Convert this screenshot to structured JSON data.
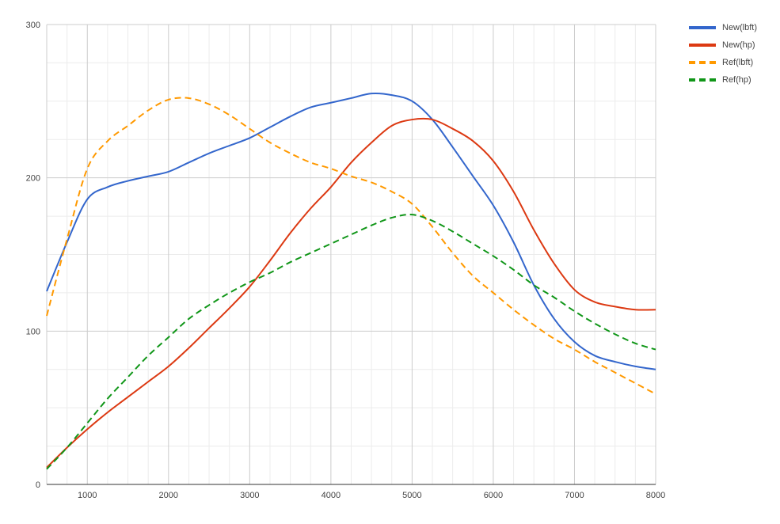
{
  "chart_data": {
    "type": "line",
    "title": "",
    "xlabel": "",
    "ylabel": "",
    "xlim": [
      500,
      8000
    ],
    "ylim": [
      0,
      300
    ],
    "x_ticks": [
      "1000",
      "2000",
      "3000",
      "4000",
      "5000",
      "6000",
      "7000",
      "8000"
    ],
    "y_ticks": [
      "0",
      "100",
      "200",
      "300"
    ],
    "grid": true,
    "legend_position": "right",
    "x": [
      500,
      750,
      1000,
      1250,
      1500,
      1750,
      2000,
      2250,
      2500,
      2750,
      3000,
      3250,
      3500,
      3750,
      4000,
      4250,
      4500,
      4750,
      5000,
      5250,
      5500,
      5750,
      6000,
      6250,
      6500,
      6750,
      7000,
      7250,
      7500,
      7750,
      8000
    ],
    "series": [
      {
        "name": "New(lbft)",
        "color": "#3366cc",
        "dashed": false,
        "values": [
          126,
          158,
          186,
          194,
          198,
          201,
          204,
          210,
          216,
          221,
          226,
          233,
          240,
          246,
          249,
          252,
          255,
          254,
          250,
          238,
          220,
          201,
          182,
          158,
          130,
          108,
          93,
          84,
          80,
          77,
          75
        ]
      },
      {
        "name": "New(hp)",
        "color": "#dc3912",
        "dashed": false,
        "values": [
          11,
          24,
          36,
          47,
          57,
          67,
          77,
          89,
          102,
          115,
          129,
          146,
          164,
          180,
          194,
          210,
          223,
          234,
          238,
          238,
          232,
          224,
          211,
          191,
          166,
          144,
          127,
          119,
          116,
          114,
          114
        ]
      },
      {
        "name": "Ref(lbft)",
        "color": "#ff9900",
        "dashed": true,
        "values": [
          110,
          160,
          206,
          224,
          234,
          244,
          251,
          252,
          248,
          241,
          232,
          223,
          216,
          210,
          206,
          201,
          197,
          191,
          183,
          168,
          151,
          136,
          125,
          114,
          104,
          95,
          88,
          80,
          73,
          66,
          59
        ]
      },
      {
        "name": "Ref(hp)",
        "color": "#109618",
        "dashed": true,
        "values": [
          10,
          24,
          40,
          56,
          70,
          84,
          96,
          108,
          117,
          125,
          132,
          138,
          145,
          151,
          157,
          163,
          169,
          174,
          176,
          172,
          165,
          157,
          149,
          140,
          130,
          122,
          113,
          105,
          98,
          92,
          88
        ]
      }
    ]
  }
}
